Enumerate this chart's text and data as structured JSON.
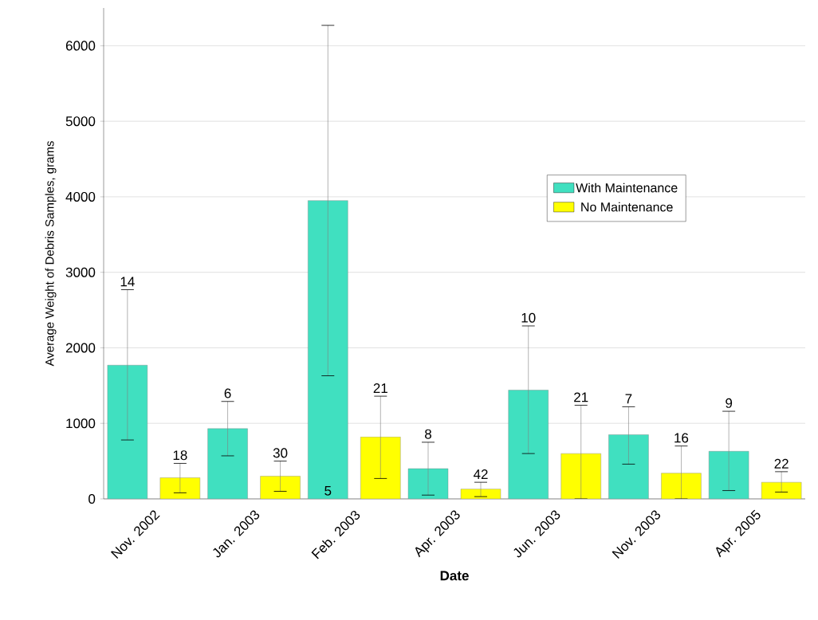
{
  "chart_data": {
    "type": "bar",
    "xlabel": "Date",
    "ylabel": "Average Weight of Debris Samples, grams",
    "categories": [
      "Nov. 2002",
      "Jan. 2003",
      "Feb. 2003",
      "Apr. 2003",
      "Jun. 2003",
      "Nov. 2003",
      "Apr. 2005"
    ],
    "series": [
      {
        "name": "With Maintenance",
        "color": "#40e0c0",
        "values": [
          1770,
          930,
          3950,
          400,
          1440,
          850,
          630
        ],
        "errors": [
          [
            780,
            2770
          ],
          [
            570,
            1290
          ],
          [
            1630,
            6270
          ],
          [
            50,
            750
          ],
          [
            600,
            2290
          ],
          [
            460,
            1220
          ],
          [
            110,
            1160
          ]
        ]
      },
      {
        "name": "No Maintenance",
        "color": "#ffff00",
        "values": [
          280,
          300,
          820,
          130,
          600,
          340,
          220
        ],
        "errors": [
          [
            80,
            470
          ],
          [
            100,
            500
          ],
          [
            270,
            1360
          ],
          [
            30,
            220
          ],
          [
            0,
            1240
          ],
          [
            0,
            700
          ],
          [
            90,
            360
          ]
        ]
      }
    ],
    "annotations": [
      "14",
      "6",
      "5",
      "8",
      "10",
      "7",
      "9",
      "18",
      "30",
      "21",
      "42",
      "21",
      "16",
      "22"
    ],
    "ylim": [
      0,
      6500
    ],
    "yticks": [
      0,
      1000,
      2000,
      3000,
      4000,
      5000,
      6000
    ],
    "grid": "y",
    "legend": "right"
  }
}
